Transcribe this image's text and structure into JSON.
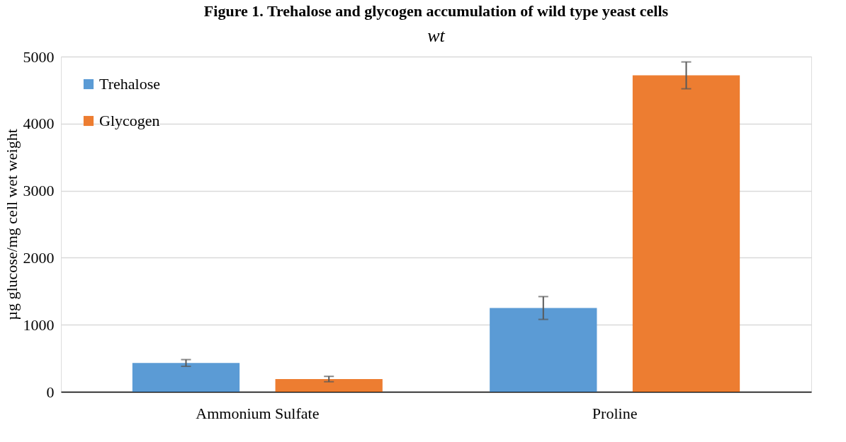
{
  "chart_data": {
    "type": "bar",
    "title": "Figure 1. Trehalose and glycogen accumulation of wild type yeast cells",
    "subtitle": "wt",
    "ylabel": "µg glucose/mg cell wet weight",
    "categories": [
      "Ammonium Sulfate",
      "Proline"
    ],
    "series": [
      {
        "name": "Trehalose",
        "color": "#5b9bd5",
        "values": [
          430,
          1250
        ],
        "errors": [
          50,
          170
        ]
      },
      {
        "name": "Glycogen",
        "color": "#ed7d31",
        "values": [
          190,
          4720
        ],
        "errors": [
          40,
          200
        ]
      }
    ],
    "ylim": [
      0,
      5000
    ],
    "yticks": [
      0,
      1000,
      2000,
      3000,
      4000,
      5000
    ],
    "grid": "y",
    "legend": "top left"
  }
}
